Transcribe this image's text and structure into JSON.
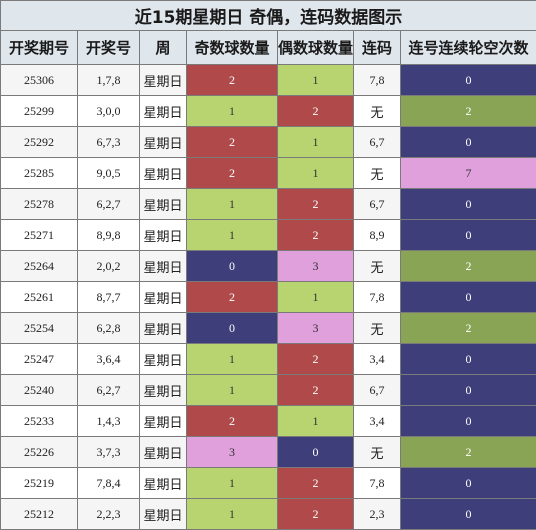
{
  "title": "近15期星期日 奇偶，连码数据图示",
  "headers": [
    "开奖期号",
    "开奖号",
    "周",
    "奇数球数量",
    "偶数球数量",
    "连码",
    "连号连续轮空次数"
  ],
  "colors": {
    "red": "#b04a4a",
    "green": "#b8d470",
    "navy": "#3e3e7a",
    "pink": "#e0a0dc",
    "olive": "#8aa456"
  },
  "rows": [
    {
      "issue": "25306",
      "nums": "1,7,8",
      "week": "星期日",
      "odd": "2",
      "odd_color": "red",
      "even": "1",
      "even_color": "green",
      "pair": "7,8",
      "gap": "0",
      "gap_color": "navy"
    },
    {
      "issue": "25299",
      "nums": "3,0,0",
      "week": "星期日",
      "odd": "1",
      "odd_color": "green",
      "even": "2",
      "even_color": "red",
      "pair": "无",
      "gap": "2",
      "gap_color": "olive"
    },
    {
      "issue": "25292",
      "nums": "6,7,3",
      "week": "星期日",
      "odd": "2",
      "odd_color": "red",
      "even": "1",
      "even_color": "green",
      "pair": "6,7",
      "gap": "0",
      "gap_color": "navy"
    },
    {
      "issue": "25285",
      "nums": "9,0,5",
      "week": "星期日",
      "odd": "2",
      "odd_color": "red",
      "even": "1",
      "even_color": "green",
      "pair": "无",
      "gap": "7",
      "gap_color": "pink"
    },
    {
      "issue": "25278",
      "nums": "6,2,7",
      "week": "星期日",
      "odd": "1",
      "odd_color": "green",
      "even": "2",
      "even_color": "red",
      "pair": "6,7",
      "gap": "0",
      "gap_color": "navy"
    },
    {
      "issue": "25271",
      "nums": "8,9,8",
      "week": "星期日",
      "odd": "1",
      "odd_color": "green",
      "even": "2",
      "even_color": "red",
      "pair": "8,9",
      "gap": "0",
      "gap_color": "navy"
    },
    {
      "issue": "25264",
      "nums": "2,0,2",
      "week": "星期日",
      "odd": "0",
      "odd_color": "navy",
      "even": "3",
      "even_color": "pink",
      "pair": "无",
      "gap": "2",
      "gap_color": "olive"
    },
    {
      "issue": "25261",
      "nums": "8,7,7",
      "week": "星期日",
      "odd": "2",
      "odd_color": "red",
      "even": "1",
      "even_color": "green",
      "pair": "7,8",
      "gap": "0",
      "gap_color": "navy"
    },
    {
      "issue": "25254",
      "nums": "6,2,8",
      "week": "星期日",
      "odd": "0",
      "odd_color": "navy",
      "even": "3",
      "even_color": "pink",
      "pair": "无",
      "gap": "2",
      "gap_color": "olive"
    },
    {
      "issue": "25247",
      "nums": "3,6,4",
      "week": "星期日",
      "odd": "1",
      "odd_color": "green",
      "even": "2",
      "even_color": "red",
      "pair": "3,4",
      "gap": "0",
      "gap_color": "navy"
    },
    {
      "issue": "25240",
      "nums": "6,2,7",
      "week": "星期日",
      "odd": "1",
      "odd_color": "green",
      "even": "2",
      "even_color": "red",
      "pair": "6,7",
      "gap": "0",
      "gap_color": "navy"
    },
    {
      "issue": "25233",
      "nums": "1,4,3",
      "week": "星期日",
      "odd": "2",
      "odd_color": "red",
      "even": "1",
      "even_color": "green",
      "pair": "3,4",
      "gap": "0",
      "gap_color": "navy"
    },
    {
      "issue": "25226",
      "nums": "3,7,3",
      "week": "星期日",
      "odd": "3",
      "odd_color": "pink",
      "even": "0",
      "even_color": "navy",
      "pair": "无",
      "gap": "2",
      "gap_color": "olive"
    },
    {
      "issue": "25219",
      "nums": "7,8,4",
      "week": "星期日",
      "odd": "1",
      "odd_color": "green",
      "even": "2",
      "even_color": "red",
      "pair": "7,8",
      "gap": "0",
      "gap_color": "navy"
    },
    {
      "issue": "25212",
      "nums": "2,2,3",
      "week": "星期日",
      "odd": "1",
      "odd_color": "green",
      "even": "2",
      "even_color": "red",
      "pair": "2,3",
      "gap": "0",
      "gap_color": "navy"
    }
  ]
}
